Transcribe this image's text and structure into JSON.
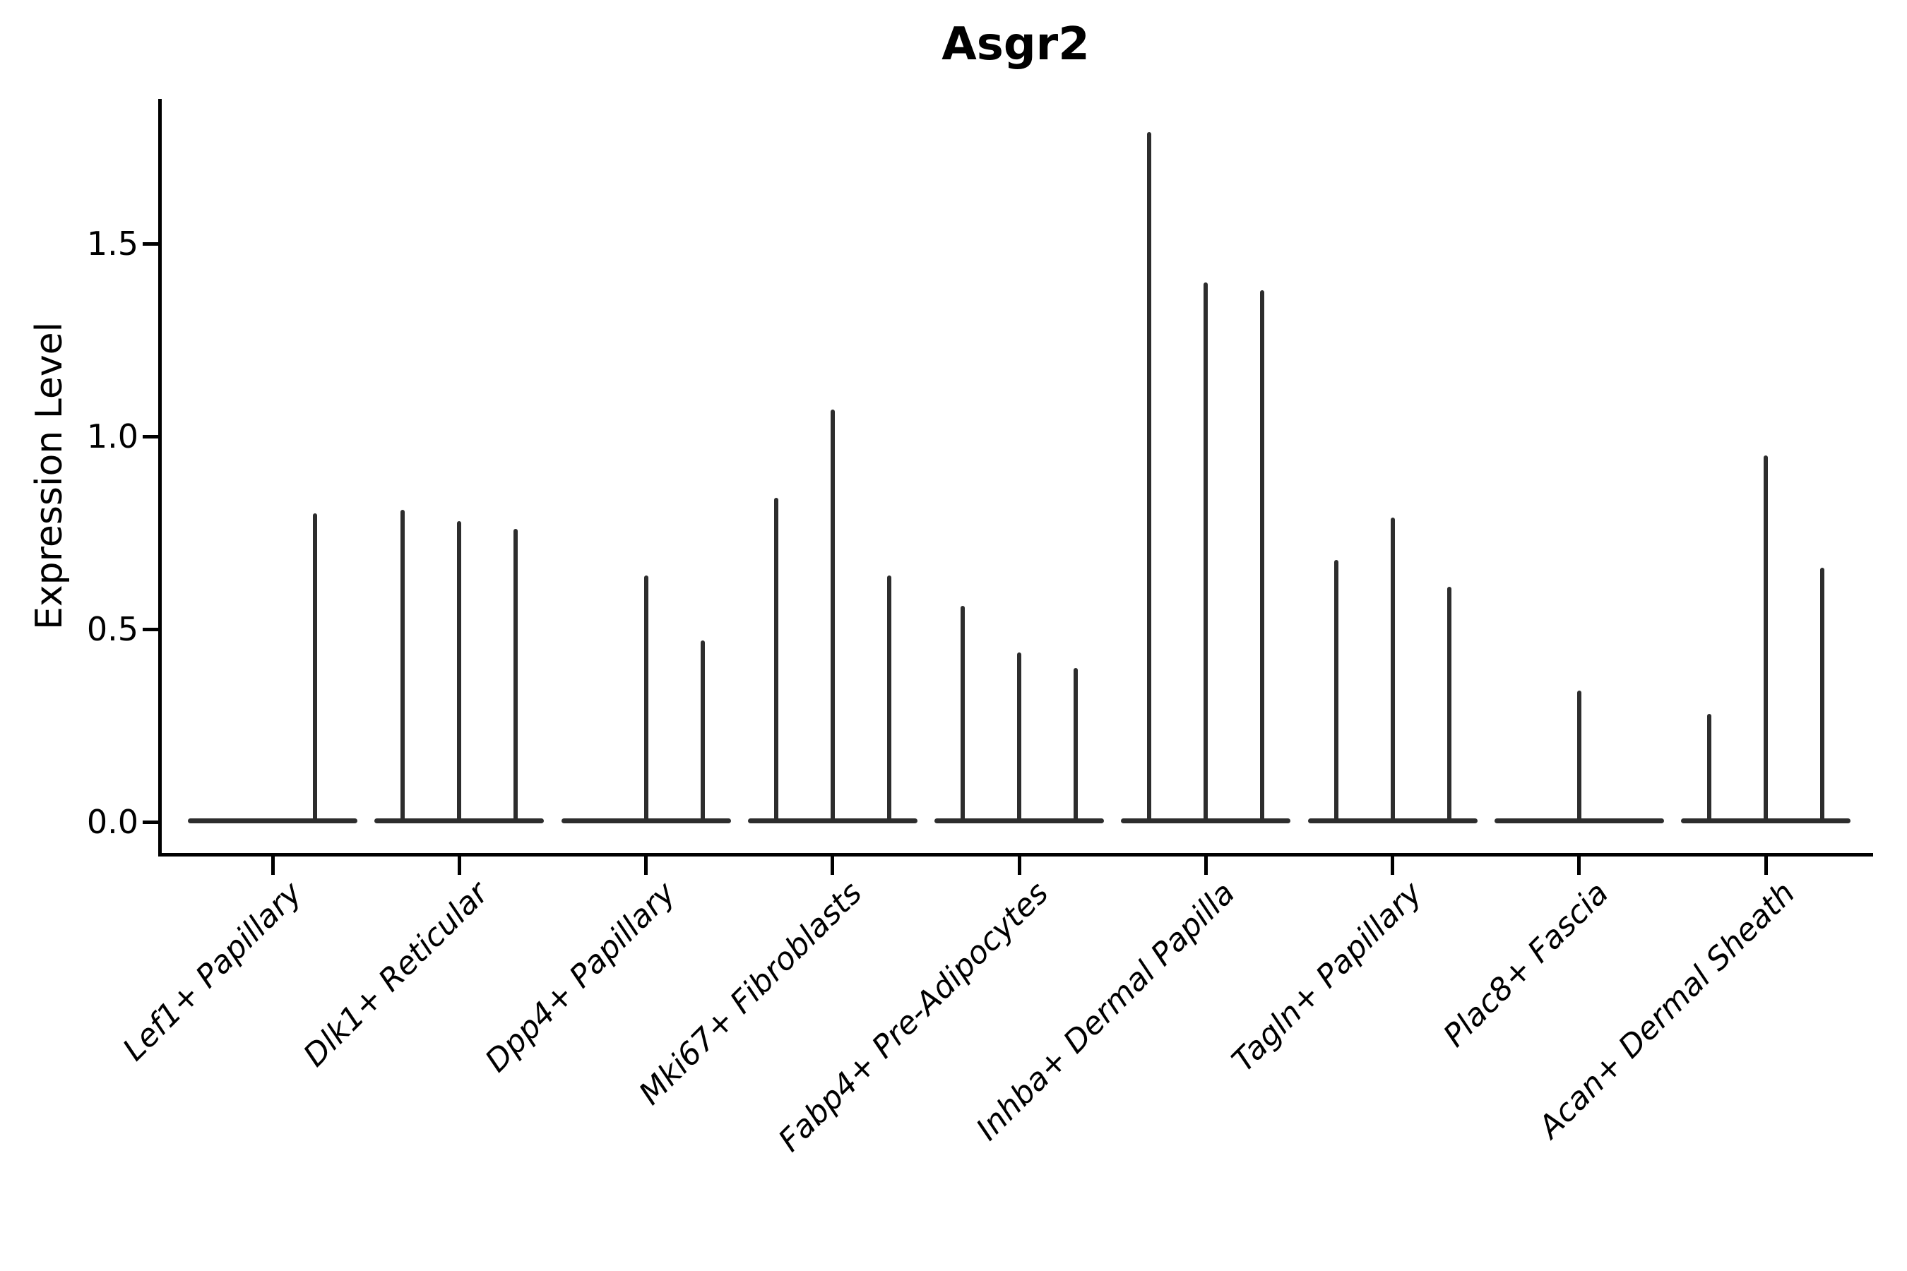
{
  "figure": {
    "title": "Asgr2",
    "ylabel": "Expression Level"
  },
  "chart_data": {
    "type": "violin",
    "title": "Asgr2",
    "xlabel": "",
    "ylabel": "Expression Level",
    "ylim": [
      -0.09,
      1.87
    ],
    "yticks": [
      0.0,
      0.5,
      1.0,
      1.5
    ],
    "ytick_labels": [
      "0.0",
      "0.5",
      "1.0",
      "1.5"
    ],
    "grid": false,
    "legend": "none",
    "categories": [
      "Lef1+ Papillary",
      "Dlk1+ Reticular",
      "Dpp4+ Papillary",
      "Mki67+ Fibroblasts",
      "Fabp4+ Pre-Adipocytes",
      "Inhba+ Dermal Papilla",
      "Tagln+ Papillary",
      "Plac8+ Fascia",
      "Acan+ Dermal Sheath"
    ],
    "series": [
      {
        "category": "Lef1+ Papillary",
        "violin_max_values": [
          0.0,
          0.8
        ]
      },
      {
        "category": "Dlk1+ Reticular",
        "violin_max_values": [
          0.81,
          0.78,
          0.76
        ]
      },
      {
        "category": "Dpp4+ Papillary",
        "violin_max_values": [
          0.0,
          0.64,
          0.47
        ]
      },
      {
        "category": "Mki67+ Fibroblasts",
        "violin_max_values": [
          0.84,
          1.07,
          0.64
        ]
      },
      {
        "category": "Fabp4+ Pre-Adipocytes",
        "violin_max_values": [
          0.56,
          0.44,
          0.4
        ]
      },
      {
        "category": "Inhba+ Dermal Papilla",
        "violin_max_values": [
          1.79,
          1.4,
          1.38
        ]
      },
      {
        "category": "Tagln+ Papillary",
        "violin_max_values": [
          0.68,
          0.79,
          0.61
        ]
      },
      {
        "category": "Plac8+ Fascia",
        "violin_max_values": [
          0.0,
          0.34,
          0.0
        ]
      },
      {
        "category": "Acan+ Dermal Sheath",
        "violin_max_values": [
          0.28,
          0.95,
          0.66
        ]
      }
    ],
    "violin_color": "#2d2d2d",
    "axis_color": "#000000",
    "background_color": "#ffffff"
  }
}
